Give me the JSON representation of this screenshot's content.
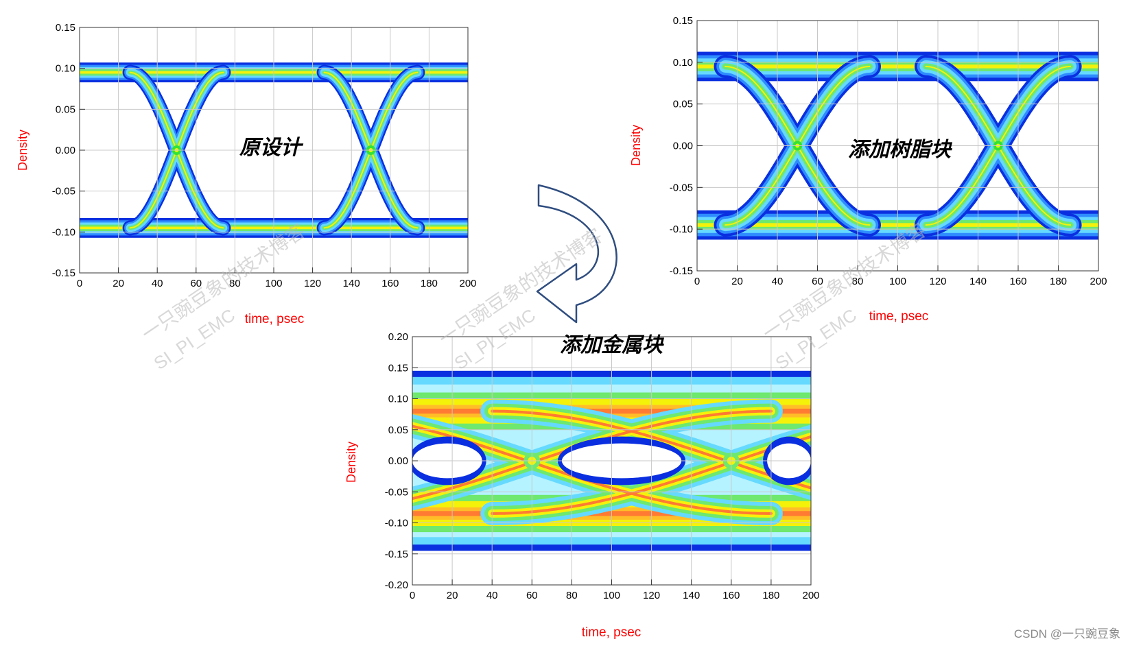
{
  "colors": {
    "axis_label": "#ff0000",
    "tick_text": "#000000",
    "grid": "#c8c8c8",
    "arrow": "#2f4d7f",
    "density_ramp": [
      "#0a2fe0",
      "#2f8cff",
      "#66d9ff",
      "#b4f3ff",
      "#6ee86e",
      "#34e234",
      "#f5f20a",
      "#ffbe28",
      "#ff7a32",
      "#ff3f3f"
    ]
  },
  "chart_data": [
    {
      "type": "heatmap",
      "annotation": "原设计",
      "xlabel": "time, psec",
      "ylabel": "Density",
      "xlim": [
        0,
        200
      ],
      "ylim": [
        -0.15,
        0.15
      ],
      "x_ticks": [
        "0",
        "20",
        "40",
        "60",
        "80",
        "100",
        "120",
        "140",
        "160",
        "180",
        "200"
      ],
      "y_ticks": [
        "0.15",
        "0.10",
        "0.05",
        "0.00",
        "-0.05",
        "-0.10",
        "-0.15"
      ],
      "grid": true,
      "eye": {
        "high_level": 0.095,
        "low_level": -0.095,
        "crossing_times": [
          50,
          150
        ],
        "crossing_level": 0.0,
        "rail_thickness": 0.022,
        "transition_width_ps": 6,
        "peak_density_location": "rails"
      }
    },
    {
      "type": "heatmap",
      "annotation": "添加树脂块",
      "xlabel": "time, psec",
      "ylabel": "Density",
      "xlim": [
        0,
        200
      ],
      "ylim": [
        -0.15,
        0.15
      ],
      "x_ticks": [
        "0",
        "20",
        "40",
        "60",
        "80",
        "100",
        "120",
        "140",
        "160",
        "180",
        "200"
      ],
      "y_ticks": [
        "0.15",
        "0.10",
        "0.05",
        "0.00",
        "-0.05",
        "-0.10",
        "-0.15"
      ],
      "grid": true,
      "eye": {
        "high_level": 0.095,
        "low_level": -0.095,
        "crossing_times": [
          50,
          150
        ],
        "crossing_level": 0.0,
        "rail_thickness": 0.032,
        "transition_width_ps": 9,
        "peak_density_location": "rails"
      }
    },
    {
      "type": "heatmap",
      "annotation": "添加金属块",
      "xlabel": "time, psec",
      "ylabel": "Density",
      "xlim": [
        0,
        200
      ],
      "ylim": [
        -0.2,
        0.2
      ],
      "x_ticks": [
        "0",
        "20",
        "40",
        "60",
        "80",
        "100",
        "120",
        "140",
        "160",
        "180",
        "200"
      ],
      "y_ticks": [
        "0.20",
        "0.15",
        "0.10",
        "0.05",
        "0.00",
        "-0.05",
        "-0.10",
        "-0.15",
        "-0.20"
      ],
      "grid": true,
      "eye": {
        "high_level": 0.08,
        "low_level": -0.085,
        "crossing_times": [
          60,
          160
        ],
        "crossing_level": 0.0,
        "outer_envelope": 0.145,
        "eye_opening_half_height": 0.028,
        "peak_density_location": "rails near 10 ps and 110 ps"
      }
    }
  ],
  "watermarks": [
    "一只豌豆象的技术博客",
    "SI_PI_EMC",
    "一只豌豆象的技术博客",
    "SI_PI_EMC"
  ],
  "footer": "CSDN @一只豌豆象"
}
